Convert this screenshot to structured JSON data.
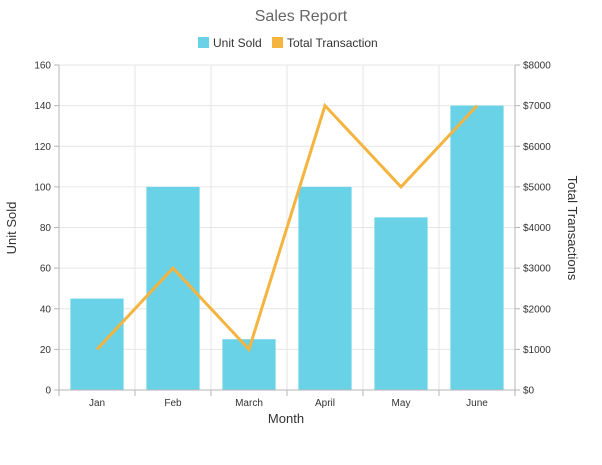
{
  "chart_data": {
    "type": "bar",
    "title": "Sales Report",
    "categories": [
      "Jan",
      "Feb",
      "March",
      "April",
      "May",
      "June"
    ],
    "xlabel": "Month",
    "ylabel": "Unit Sold",
    "y2label": "Total Transactions",
    "ylim": [
      0,
      160
    ],
    "y2lim": [
      0,
      8000
    ],
    "yticks": [
      "0",
      "20",
      "40",
      "60",
      "80",
      "100",
      "120",
      "140",
      "160"
    ],
    "y2ticks": [
      "$0",
      "$1000",
      "$2000",
      "$3000",
      "$4000",
      "$5000",
      "$6000",
      "$7000",
      "$8000"
    ],
    "legend_position": "top-center",
    "grid": true,
    "series": [
      {
        "name": "Unit Sold",
        "type": "bar",
        "axis": "left",
        "color": "#69d2e7",
        "values": [
          45,
          100,
          25,
          100,
          85,
          140
        ]
      },
      {
        "name": "Total Transaction",
        "type": "line",
        "axis": "right",
        "color": "#f4b43f",
        "values": [
          1000,
          3000,
          1000,
          7000,
          5000,
          7000
        ]
      }
    ]
  }
}
